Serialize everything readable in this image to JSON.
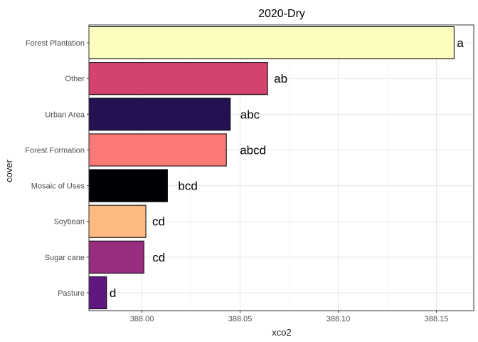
{
  "chart_data": {
    "type": "bar",
    "orientation": "horizontal",
    "title": "2020-Dry",
    "xlabel": "xco2",
    "ylabel": "cover",
    "xlim": [
      387.973,
      388.169
    ],
    "xticks": [
      388.0,
      388.05,
      388.1,
      388.15
    ],
    "xtick_labels": [
      "388.00",
      "388.05",
      "388.10",
      "388.15"
    ],
    "grid": true,
    "legend": "none",
    "categories": [
      "Forest Plantation",
      "Other",
      "Urban Area",
      "Forest Formation",
      "Mosaic of Uses",
      "Soybean",
      "Sugar cane",
      "Pasture"
    ],
    "values": [
      388.159,
      388.064,
      388.045,
      388.043,
      388.013,
      388.002,
      388.001,
      387.982
    ],
    "labels": [
      "a",
      "ab",
      "abc",
      "abcd",
      "bcd",
      "cd",
      "cd",
      "d"
    ],
    "colors": [
      "#FCFDBF",
      "#D3436E",
      "#231151",
      "#FA7876",
      "#000004",
      "#FEBA80",
      "#982D80",
      "#5F187F"
    ]
  }
}
